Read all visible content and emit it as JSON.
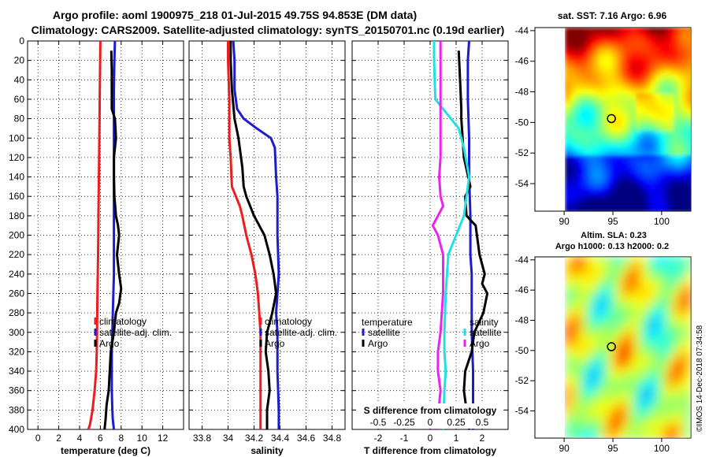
{
  "header": {
    "title_line1": "Argo profile: aoml 1900975_218 01-Jul-2015 49.75S 94.853E (DM data)",
    "title_line2": "Climatology: CARS2009. Satellite-adjusted climatology: synTS_20150701.nc (0.19d earlier)"
  },
  "credit": "©IMOS 14-Dec-2018 07:34:58",
  "colors": {
    "climatology": "#ee1c1c",
    "satellite": "#1c1ccc",
    "argo": "#000000",
    "sal_sat": "#22e0e0",
    "sal_argo": "#ee22ee"
  },
  "chart_data": [
    {
      "type": "line",
      "panel": "temperature",
      "xlabel": "temperature (deg C)",
      "xlim": [
        -1,
        14
      ],
      "ylim": [
        400,
        0
      ],
      "xticks": [
        0,
        2,
        4,
        6,
        8,
        10,
        12
      ],
      "yticks": [
        0,
        20,
        40,
        60,
        80,
        100,
        120,
        140,
        160,
        180,
        200,
        220,
        240,
        260,
        280,
        300,
        320,
        340,
        360,
        380,
        400
      ],
      "legend": [
        "climatology",
        "satellite-adj. clim.",
        "Argo"
      ],
      "series": [
        {
          "name": "climatology",
          "color": "#ee1c1c",
          "x": [
            6.0,
            5.95,
            5.9,
            5.85,
            5.82,
            5.8,
            5.78,
            5.75,
            5.72,
            5.7,
            5.68,
            5.65,
            5.6,
            5.45,
            5.25,
            5.0,
            4.85
          ],
          "y": [
            0,
            50,
            100,
            150,
            175,
            200,
            220,
            240,
            260,
            280,
            300,
            320,
            340,
            360,
            380,
            395,
            400
          ]
        },
        {
          "name": "satellite-adj. clim.",
          "color": "#1c1ccc",
          "x": [
            7.4,
            7.35,
            7.3,
            7.3,
            7.3,
            7.3,
            7.3,
            7.25,
            7.2,
            7.15,
            7.1,
            7.1,
            7.1,
            7.15,
            7.2,
            7.3
          ],
          "y": [
            0,
            20,
            50,
            100,
            150,
            200,
            240,
            260,
            280,
            300,
            320,
            340,
            360,
            380,
            390,
            400
          ]
        },
        {
          "name": "Argo",
          "color": "#000000",
          "x": [
            7.05,
            7.1,
            7.1,
            7.1,
            7.4,
            7.5,
            7.3,
            7.3,
            7.35,
            7.5,
            7.7,
            7.8,
            7.6,
            7.8,
            8.0,
            7.8,
            7.5,
            7.3,
            7.0,
            6.9,
            6.8,
            6.6,
            6.5,
            6.4
          ],
          "y": [
            10,
            30,
            50,
            70,
            80,
            100,
            120,
            140,
            160,
            180,
            190,
            200,
            220,
            240,
            255,
            270,
            280,
            300,
            320,
            340,
            360,
            375,
            390,
            400
          ]
        }
      ]
    },
    {
      "type": "line",
      "panel": "salinity",
      "xlabel": "salinity",
      "xlim": [
        33.7,
        34.9
      ],
      "ylim": [
        400,
        0
      ],
      "xticks": [
        33.8,
        34.0,
        34.2,
        34.4,
        34.6,
        34.8
      ],
      "xtick_labels": [
        "33.8",
        "34",
        "34.2",
        "34.4",
        "34.6",
        "34.8"
      ],
      "legend": [
        "climatology",
        "satellite-adj. clim.",
        "Argo"
      ],
      "series": [
        {
          "name": "climatology",
          "color": "#ee1c1c",
          "x": [
            34.0,
            34.0,
            34.01,
            34.01,
            34.02,
            34.03,
            34.06,
            34.09,
            34.11,
            34.14,
            34.18,
            34.21,
            34.23,
            34.24,
            34.25,
            34.25,
            34.25,
            34.25
          ],
          "y": [
            0,
            20,
            60,
            100,
            120,
            150,
            160,
            170,
            180,
            200,
            220,
            240,
            260,
            280,
            300,
            340,
            380,
            400
          ]
        },
        {
          "name": "satellite-adj. clim.",
          "color": "#1c1ccc",
          "x": [
            34.04,
            34.05,
            34.05,
            34.07,
            34.12,
            34.22,
            34.33,
            34.36,
            34.37,
            34.38,
            34.38,
            34.39,
            34.38,
            34.37,
            34.38,
            34.38,
            34.39,
            34.39
          ],
          "y": [
            0,
            20,
            50,
            70,
            80,
            90,
            100,
            110,
            140,
            160,
            200,
            240,
            260,
            280,
            300,
            340,
            380,
            400
          ]
        },
        {
          "name": "Argo",
          "color": "#000000",
          "x": [
            34.02,
            34.02,
            34.03,
            34.05,
            34.08,
            34.11,
            34.12,
            34.14,
            34.2,
            34.28,
            34.32,
            34.35,
            34.36,
            34.37,
            34.34,
            34.3,
            34.29,
            34.31,
            34.32,
            34.3,
            34.3
          ],
          "y": [
            0,
            20,
            50,
            80,
            100,
            130,
            150,
            160,
            180,
            200,
            220,
            240,
            250,
            260,
            280,
            300,
            320,
            340,
            360,
            380,
            400
          ]
        }
      ]
    },
    {
      "type": "line",
      "panel": "differences",
      "xlabel": "T difference from climatology",
      "xlabel2": "S difference from climatology",
      "xlim": [
        -3,
        3
      ],
      "ylim": [
        400,
        0
      ],
      "xticks": [
        -2,
        -1,
        0,
        1,
        2
      ],
      "xtick_labels": [
        "-2",
        "-1",
        "0",
        "1",
        "2"
      ],
      "s_ticks": [
        {
          "label": "-0.5",
          "x": -2.0
        },
        {
          "label": "-0.25",
          "x": -1.0
        },
        {
          "label": "0",
          "x": 0.0
        },
        {
          "label": "0.25",
          "x": 1.0
        },
        {
          "label": "0.5",
          "x": 2.0
        }
      ],
      "legend_left_title": "temperature",
      "legend_right_title": "salinity",
      "legend_left": [
        "satellite",
        "Argo"
      ],
      "legend_right": [
        "satellite",
        "Argo"
      ],
      "series": [
        {
          "name": "T satellite",
          "color": "#1c1ccc",
          "x": [
            1.5,
            1.45,
            1.45,
            1.5,
            1.5,
            1.55,
            1.55,
            1.6,
            1.6,
            1.6,
            1.6,
            1.65,
            1.65,
            1.65
          ],
          "y": [
            0,
            20,
            60,
            100,
            140,
            180,
            220,
            240,
            260,
            280,
            300,
            340,
            380,
            400
          ]
        },
        {
          "name": "T Argo",
          "color": "#000000",
          "x": [
            1.1,
            1.15,
            1.2,
            1.2,
            1.3,
            1.55,
            1.35,
            1.4,
            1.75,
            1.8,
            1.9,
            2.1,
            2.0,
            2.2,
            2.05,
            1.7,
            1.6,
            1.35,
            1.3,
            1.5
          ],
          "y": [
            10,
            40,
            70,
            80,
            120,
            150,
            160,
            180,
            190,
            200,
            220,
            240,
            250,
            260,
            280,
            300,
            320,
            340,
            360,
            400
          ]
        },
        {
          "name": "S satellite",
          "color": "#22e0e0",
          "x": [
            0.15,
            0.15,
            0.2,
            0.5,
            1.1,
            1.3,
            1.5,
            1.4,
            1.3,
            1.0,
            0.7,
            0.6,
            0.55,
            0.55,
            0.6,
            0.55,
            0.5
          ],
          "y": [
            0,
            20,
            60,
            70,
            90,
            110,
            140,
            160,
            180,
            200,
            220,
            260,
            300,
            320,
            340,
            360,
            400
          ]
        },
        {
          "name": "S Argo",
          "color": "#ee22ee",
          "x": [
            0.4,
            0.4,
            0.4,
            0.4,
            0.35,
            0.4,
            0.5,
            0.3,
            0.1,
            0.3,
            0.5,
            0.5,
            0.4,
            0.3,
            0.3,
            0.4,
            0.25
          ],
          "y": [
            0,
            40,
            80,
            120,
            140,
            160,
            170,
            180,
            190,
            200,
            220,
            260,
            300,
            320,
            340,
            360,
            400
          ]
        }
      ]
    },
    {
      "type": "heatmap",
      "panel": "sst_map",
      "title": "sat. SST: 7.16 Argo: 6.96",
      "xlim": [
        87,
        103
      ],
      "ylim": [
        -55.8,
        -43.8
      ],
      "xticks": [
        90,
        95,
        100
      ],
      "yticks": [
        -44,
        -46,
        -48,
        -50,
        -52,
        -54
      ],
      "marker": {
        "lon": 94.85,
        "lat": -49.75
      }
    },
    {
      "type": "heatmap",
      "panel": "sla_map",
      "title": "Altim. SLA: 0.23",
      "subtitle": "Argo h1000: 0.13 h2000: 0.2",
      "xlim": [
        87,
        103
      ],
      "ylim": [
        -55.8,
        -43.8
      ],
      "xticks": [
        90,
        95,
        100
      ],
      "yticks": [
        -44,
        -46,
        -48,
        -50,
        -52,
        -54
      ],
      "marker": {
        "lon": 94.85,
        "lat": -49.75
      }
    }
  ]
}
